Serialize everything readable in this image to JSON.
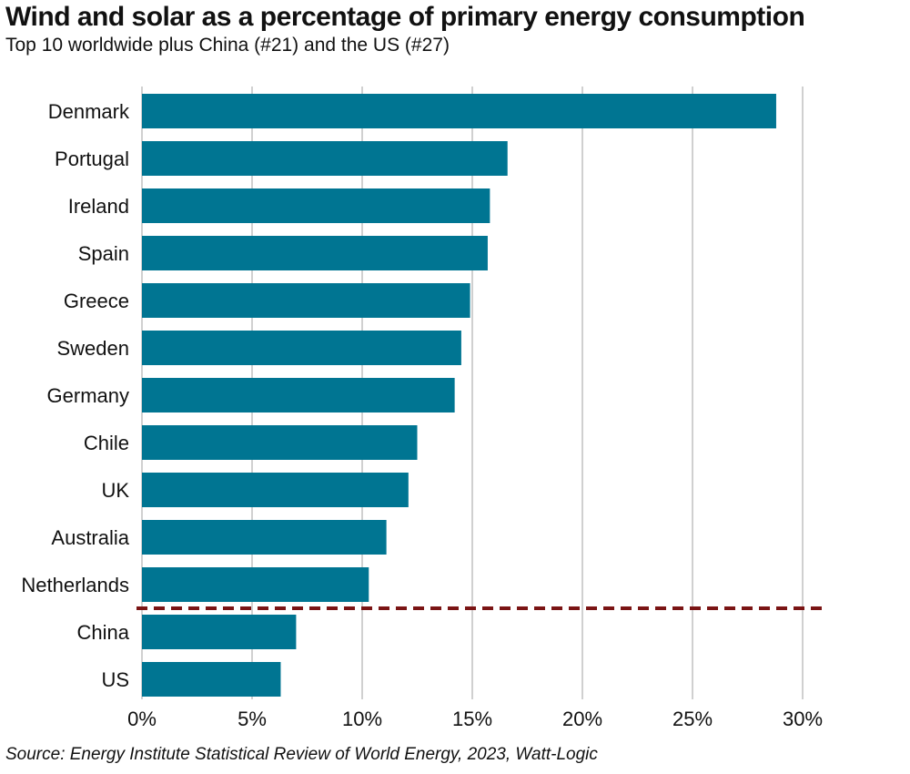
{
  "title": "Wind and solar as a percentage of primary energy consumption",
  "subtitle": "Top 10 worldwide plus China (#21) and the US (#27)",
  "source": "Source: Energy Institute Statistical Review of World Energy, 2023, Watt-Logic",
  "colors": {
    "bar": "#007592",
    "divider": "#7a1414",
    "grid": "#d0d0d0",
    "text": "#111111"
  },
  "chart_data": {
    "type": "bar",
    "orientation": "horizontal",
    "categories": [
      "Denmark",
      "Portugal",
      "Ireland",
      "Spain",
      "Greece",
      "Sweden",
      "Germany",
      "Chile",
      "UK",
      "Australia",
      "Netherlands",
      "China",
      "US"
    ],
    "values": [
      28.8,
      16.6,
      15.8,
      15.7,
      14.9,
      14.5,
      14.2,
      12.5,
      12.1,
      11.1,
      10.3,
      7.0,
      6.3
    ],
    "xlim": [
      0,
      30
    ],
    "xticks": [
      0,
      5,
      10,
      15,
      20,
      25,
      30
    ],
    "tick_labels": [
      "0%",
      "5%",
      "10%",
      "15%",
      "20%",
      "25%",
      "30%"
    ],
    "grid": true,
    "divider_after": "Netherlands"
  }
}
